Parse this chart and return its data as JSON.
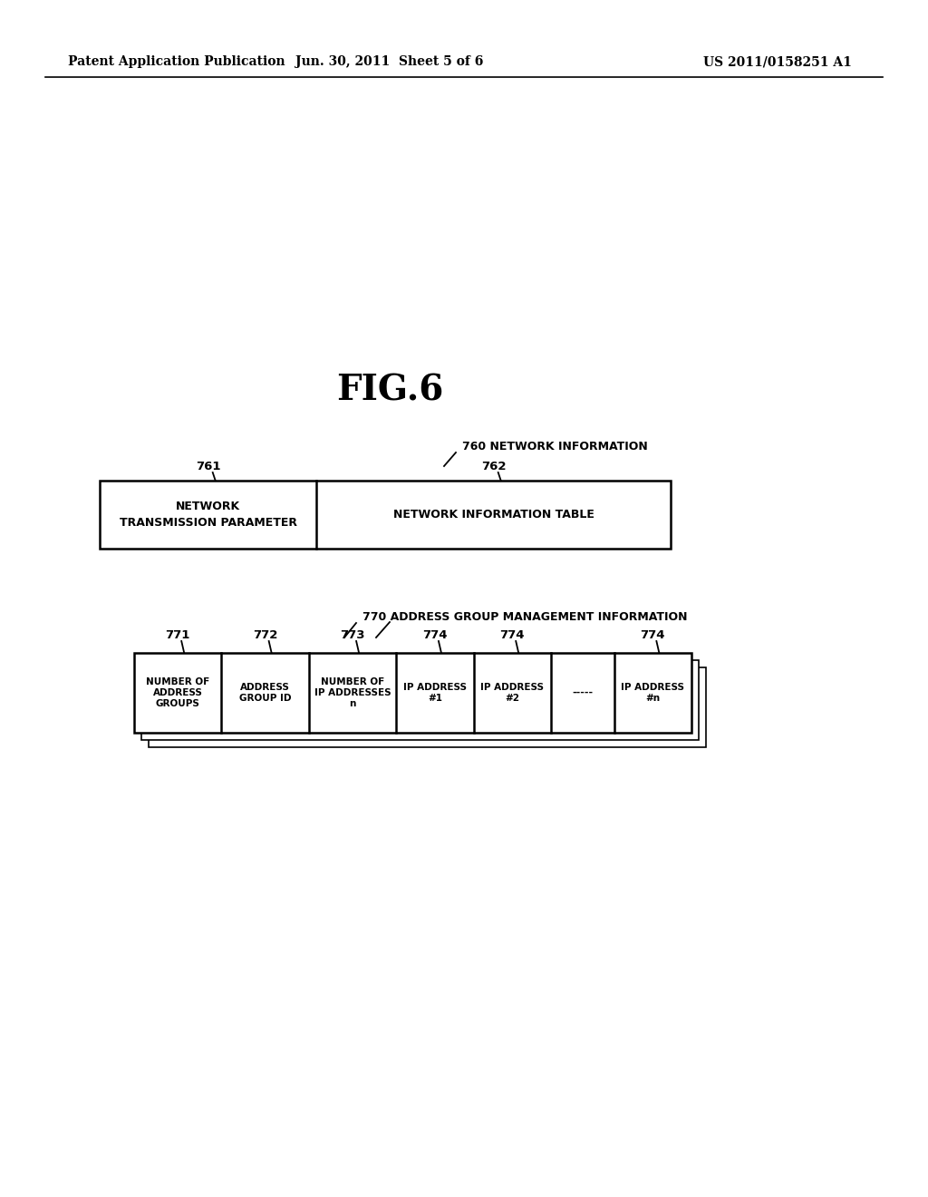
{
  "bg_color": "#ffffff",
  "header_left": "Patent Application Publication",
  "header_mid": "Jun. 30, 2011  Sheet 5 of 6",
  "header_right": "US 2011/0158251 A1",
  "fig_title": "FIG.6",
  "label_760": "760 NETWORK INFORMATION",
  "label_761": "761",
  "label_762": "762",
  "cell761_text": "NETWORK\nTRANSMISSION PARAMETER",
  "cell762_text": "NETWORK INFORMATION TABLE",
  "label_770": "770 ADDRESS GROUP MANAGEMENT INFORMATION",
  "label_771": "771",
  "label_772": "772",
  "label_773": "773",
  "label_774a": "774",
  "label_774b": "774",
  "label_774c": "774",
  "cell771_text": "NUMBER OF\nADDRESS\nGROUPS",
  "cell772_text": "ADDRESS\nGROUP ID",
  "cell773_text": "NUMBER OF\nIP ADDRESSES\nn",
  "cell774a_text": "IP ADDRESS\n#1",
  "cell774b_text": "IP ADDRESS\n#2",
  "cell_dots_text": "-----",
  "cell774c_text": "IP ADDRESS\n#n"
}
